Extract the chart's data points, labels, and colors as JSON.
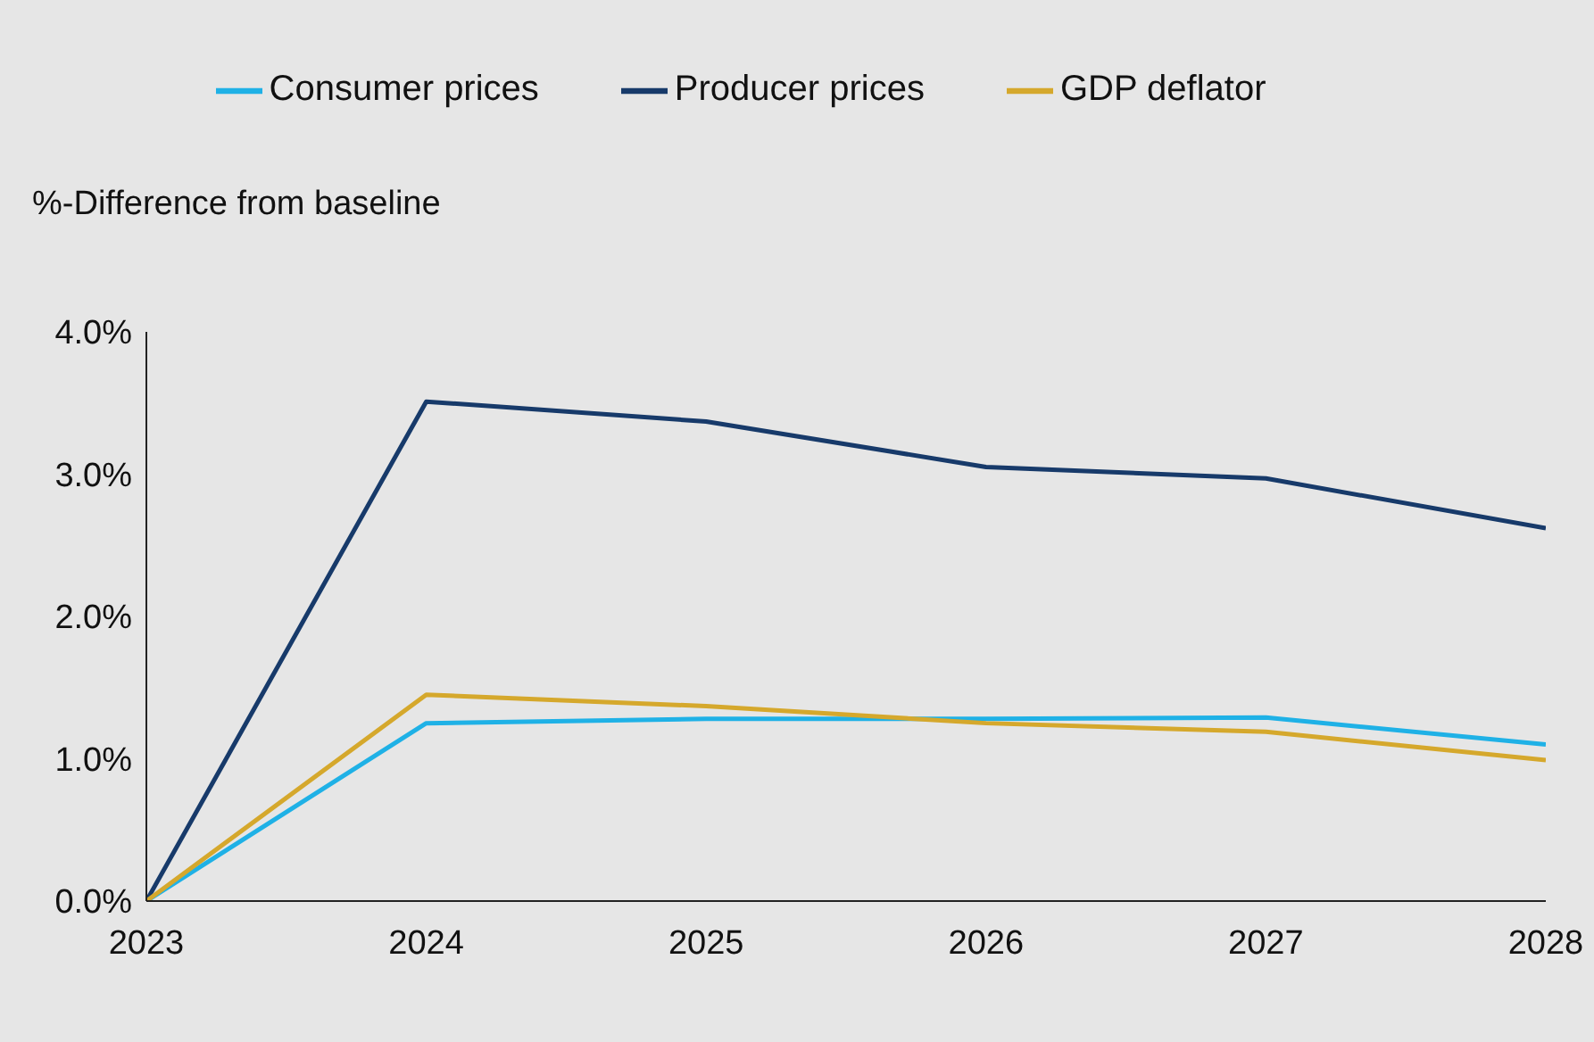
{
  "chart_data": {
    "type": "line",
    "ylabel": "%-Difference from baseline",
    "x": [
      2023,
      2024,
      2025,
      2026,
      2027,
      2028
    ],
    "xlim": [
      2023,
      2028
    ],
    "xticks": [
      2023,
      2024,
      2025,
      2026,
      2027,
      2028
    ],
    "ylim": [
      0,
      4
    ],
    "yticks": [
      {
        "value": 0,
        "label": "0.0%"
      },
      {
        "value": 1,
        "label": "1.0%"
      },
      {
        "value": 2,
        "label": "2.0%"
      },
      {
        "value": 3,
        "label": "3.0%"
      },
      {
        "value": 4,
        "label": "4.0%"
      }
    ],
    "series": [
      {
        "name": "Consumer prices",
        "color": "#1fb1e6",
        "values": [
          0,
          1.25,
          1.28,
          1.28,
          1.29,
          1.1
        ]
      },
      {
        "name": "Producer prices",
        "color": "#173a6a",
        "values": [
          0,
          3.51,
          3.37,
          3.05,
          2.97,
          2.62
        ]
      },
      {
        "name": "GDP deflator",
        "color": "#d5a82c",
        "values": [
          0,
          1.45,
          1.37,
          1.25,
          1.19,
          0.99
        ]
      }
    ],
    "grid": false,
    "legend": "top",
    "marker": "none",
    "line_style": "solid"
  }
}
